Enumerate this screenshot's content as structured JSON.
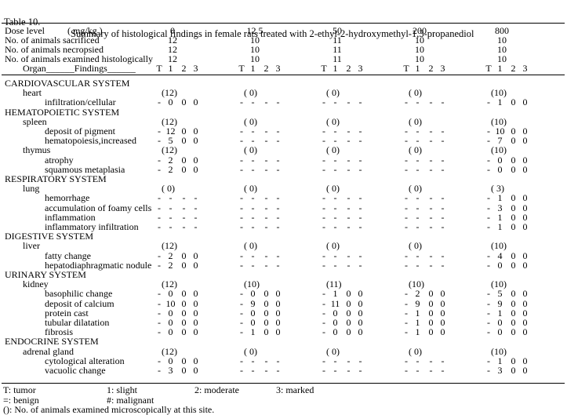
{
  "colors": {
    "text": "#000000",
    "background": "#ffffff"
  },
  "title": {
    "label": "Table 10.",
    "text": "Summary of histological findings in female rats treated with 2-ethyl-2-hydroxymethyl-1,3-propanediol"
  },
  "header": {
    "dose_label": "Dose level",
    "dose_unit": "( mg/kg )",
    "doses": [
      "0",
      "12.5",
      "50",
      "200",
      "800"
    ],
    "rows": [
      {
        "label": "No. of animals sacrificed",
        "values": [
          "12",
          "10",
          "11",
          "10",
          "10"
        ]
      },
      {
        "label": "No. of animals necropsied",
        "values": [
          "12",
          "10",
          "11",
          "10",
          "10"
        ]
      },
      {
        "label": "No. of animals examined histologically",
        "values": [
          "12",
          "10",
          "11",
          "10",
          "10"
        ]
      }
    ],
    "organ_findings_label": "Organ______Findings______",
    "subcols": [
      "T",
      "1",
      "2",
      "3"
    ]
  },
  "sections": [
    {
      "name": "CARDIOVASCULAR SYSTEM",
      "organs": [
        {
          "name": "heart",
          "counts": [
            "(12)",
            "( 0)",
            "( 0)",
            "( 0)",
            "(10)"
          ],
          "findings": [
            {
              "name": "infiltration/cellular",
              "values": [
                [
                  "-",
                  "0",
                  "0",
                  "0"
                ],
                [
                  "-",
                  "-",
                  "-",
                  "-"
                ],
                [
                  "-",
                  "-",
                  "-",
                  "-"
                ],
                [
                  "-",
                  "-",
                  "-",
                  "-"
                ],
                [
                  "-",
                  "1",
                  "0",
                  "0"
                ]
              ]
            }
          ]
        }
      ]
    },
    {
      "name": "HEMATOPOIETIC SYSTEM",
      "organs": [
        {
          "name": "spleen",
          "counts": [
            "(12)",
            "( 0)",
            "( 0)",
            "( 0)",
            "(10)"
          ],
          "findings": [
            {
              "name": "deposit of pigment",
              "values": [
                [
                  "-",
                  "12",
                  "0",
                  "0"
                ],
                [
                  "-",
                  "-",
                  "-",
                  "-"
                ],
                [
                  "-",
                  "-",
                  "-",
                  "-"
                ],
                [
                  "-",
                  "-",
                  "-",
                  "-"
                ],
                [
                  "-",
                  "10",
                  "0",
                  "0"
                ]
              ]
            },
            {
              "name": "hematopoiesis,increased",
              "values": [
                [
                  "-",
                  "5",
                  "0",
                  "0"
                ],
                [
                  "-",
                  "-",
                  "-",
                  "-"
                ],
                [
                  "-",
                  "-",
                  "-",
                  "-"
                ],
                [
                  "-",
                  "-",
                  "-",
                  "-"
                ],
                [
                  "-",
                  "7",
                  "0",
                  "0"
                ]
              ]
            }
          ]
        },
        {
          "name": "thymus",
          "counts": [
            "(12)",
            "( 0)",
            "( 0)",
            "( 0)",
            "(10)"
          ],
          "findings": [
            {
              "name": "atrophy",
              "values": [
                [
                  "-",
                  "2",
                  "0",
                  "0"
                ],
                [
                  "-",
                  "-",
                  "-",
                  "-"
                ],
                [
                  "-",
                  "-",
                  "-",
                  "-"
                ],
                [
                  "-",
                  "-",
                  "-",
                  "-"
                ],
                [
                  "-",
                  "0",
                  "0",
                  "0"
                ]
              ]
            },
            {
              "name": "squamous metaplasia",
              "values": [
                [
                  "-",
                  "2",
                  "0",
                  "0"
                ],
                [
                  "-",
                  "-",
                  "-",
                  "-"
                ],
                [
                  "-",
                  "-",
                  "-",
                  "-"
                ],
                [
                  "-",
                  "-",
                  "-",
                  "-"
                ],
                [
                  "-",
                  "0",
                  "0",
                  "0"
                ]
              ]
            }
          ]
        }
      ]
    },
    {
      "name": "RESPIRATORY SYSTEM",
      "organs": [
        {
          "name": "lung",
          "counts": [
            "( 0)",
            "( 0)",
            "( 0)",
            "( 0)",
            "( 3)"
          ],
          "findings": [
            {
              "name": "hemorrhage",
              "values": [
                [
                  "-",
                  "-",
                  "-",
                  "-"
                ],
                [
                  "-",
                  "-",
                  "-",
                  "-"
                ],
                [
                  "-",
                  "-",
                  "-",
                  "-"
                ],
                [
                  "-",
                  "-",
                  "-",
                  "-"
                ],
                [
                  "-",
                  "1",
                  "0",
                  "0"
                ]
              ]
            },
            {
              "name": "accumulation of foamy cells",
              "values": [
                [
                  "-",
                  "-",
                  "-",
                  "-"
                ],
                [
                  "-",
                  "-",
                  "-",
                  "-"
                ],
                [
                  "-",
                  "-",
                  "-",
                  "-"
                ],
                [
                  "-",
                  "-",
                  "-",
                  "-"
                ],
                [
                  "-",
                  "3",
                  "0",
                  "0"
                ]
              ]
            },
            {
              "name": "inflammation",
              "values": [
                [
                  "-",
                  "-",
                  "-",
                  "-"
                ],
                [
                  "-",
                  "-",
                  "-",
                  "-"
                ],
                [
                  "-",
                  "-",
                  "-",
                  "-"
                ],
                [
                  "-",
                  "-",
                  "-",
                  "-"
                ],
                [
                  "-",
                  "1",
                  "0",
                  "0"
                ]
              ]
            },
            {
              "name": "inflammatory infiltration",
              "values": [
                [
                  "-",
                  "-",
                  "-",
                  "-"
                ],
                [
                  "-",
                  "-",
                  "-",
                  "-"
                ],
                [
                  "-",
                  "-",
                  "-",
                  "-"
                ],
                [
                  "-",
                  "-",
                  "-",
                  "-"
                ],
                [
                  "-",
                  "1",
                  "0",
                  "0"
                ]
              ]
            }
          ]
        }
      ]
    },
    {
      "name": "DIGESTIVE SYSTEM",
      "organs": [
        {
          "name": "liver",
          "counts": [
            "(12)",
            "( 0)",
            "( 0)",
            "( 0)",
            "(10)"
          ],
          "findings": [
            {
              "name": "fatty change",
              "values": [
                [
                  "-",
                  "2",
                  "0",
                  "0"
                ],
                [
                  "-",
                  "-",
                  "-",
                  "-"
                ],
                [
                  "-",
                  "-",
                  "-",
                  "-"
                ],
                [
                  "-",
                  "-",
                  "-",
                  "-"
                ],
                [
                  "-",
                  "4",
                  "0",
                  "0"
                ]
              ]
            },
            {
              "name": "hepatodiaphragmatic nodule",
              "values": [
                [
                  "-",
                  "2",
                  "0",
                  "0"
                ],
                [
                  "-",
                  "-",
                  "-",
                  "-"
                ],
                [
                  "-",
                  "-",
                  "-",
                  "-"
                ],
                [
                  "-",
                  "-",
                  "-",
                  "-"
                ],
                [
                  "-",
                  "0",
                  "0",
                  "0"
                ]
              ]
            }
          ]
        }
      ]
    },
    {
      "name": "URINARY SYSTEM",
      "organs": [
        {
          "name": "kidney",
          "counts": [
            "(12)",
            "(10)",
            "(11)",
            "(10)",
            "(10)"
          ],
          "findings": [
            {
              "name": "basophilic change",
              "values": [
                [
                  "-",
                  "0",
                  "0",
                  "0"
                ],
                [
                  "-",
                  "0",
                  "0",
                  "0"
                ],
                [
                  "-",
                  "1",
                  "0",
                  "0"
                ],
                [
                  "-",
                  "2",
                  "0",
                  "0"
                ],
                [
                  "-",
                  "5",
                  "0",
                  "0"
                ]
              ]
            },
            {
              "name": "deposit of calcium",
              "values": [
                [
                  "-",
                  "10",
                  "0",
                  "0"
                ],
                [
                  "-",
                  "9",
                  "0",
                  "0"
                ],
                [
                  "-",
                  "11",
                  "0",
                  "0"
                ],
                [
                  "-",
                  "9",
                  "0",
                  "0"
                ],
                [
                  "-",
                  "9",
                  "0",
                  "0"
                ]
              ]
            },
            {
              "name": "protein cast",
              "values": [
                [
                  "-",
                  "0",
                  "0",
                  "0"
                ],
                [
                  "-",
                  "0",
                  "0",
                  "0"
                ],
                [
                  "-",
                  "0",
                  "0",
                  "0"
                ],
                [
                  "-",
                  "1",
                  "0",
                  "0"
                ],
                [
                  "-",
                  "1",
                  "0",
                  "0"
                ]
              ]
            },
            {
              "name": "tubular dilatation",
              "values": [
                [
                  "-",
                  "0",
                  "0",
                  "0"
                ],
                [
                  "-",
                  "0",
                  "0",
                  "0"
                ],
                [
                  "-",
                  "0",
                  "0",
                  "0"
                ],
                [
                  "-",
                  "1",
                  "0",
                  "0"
                ],
                [
                  "-",
                  "0",
                  "0",
                  "0"
                ]
              ]
            },
            {
              "name": "fibrosis",
              "values": [
                [
                  "-",
                  "0",
                  "0",
                  "0"
                ],
                [
                  "-",
                  "1",
                  "0",
                  "0"
                ],
                [
                  "-",
                  "0",
                  "0",
                  "0"
                ],
                [
                  "-",
                  "1",
                  "0",
                  "0"
                ],
                [
                  "-",
                  "0",
                  "0",
                  "0"
                ]
              ]
            }
          ]
        }
      ]
    },
    {
      "name": "ENDOCRINE SYSTEM",
      "organs": [
        {
          "name": "adrenal gland",
          "counts": [
            "(12)",
            "( 0)",
            "( 0)",
            "( 0)",
            "(10)"
          ],
          "findings": [
            {
              "name": "cytological alteration",
              "values": [
                [
                  "-",
                  "0",
                  "0",
                  "0"
                ],
                [
                  "-",
                  "-",
                  "-",
                  "-"
                ],
                [
                  "-",
                  "-",
                  "-",
                  "-"
                ],
                [
                  "-",
                  "-",
                  "-",
                  "-"
                ],
                [
                  "-",
                  "1",
                  "0",
                  "0"
                ]
              ]
            },
            {
              "name": "vacuolic change",
              "values": [
                [
                  "-",
                  "3",
                  "0",
                  "0"
                ],
                [
                  "-",
                  "-",
                  "-",
                  "-"
                ],
                [
                  "-",
                  "-",
                  "-",
                  "-"
                ],
                [
                  "-",
                  "-",
                  "-",
                  "-"
                ],
                [
                  "-",
                  "3",
                  "0",
                  "0"
                ]
              ]
            }
          ]
        }
      ]
    }
  ],
  "footnotes": [
    [
      "T: tumor",
      "1: slight",
      "2: moderate",
      "3: marked"
    ],
    [
      "=: benign",
      "#: malignant"
    ],
    [
      "(): No. of animals examined microscopically at this site."
    ]
  ]
}
